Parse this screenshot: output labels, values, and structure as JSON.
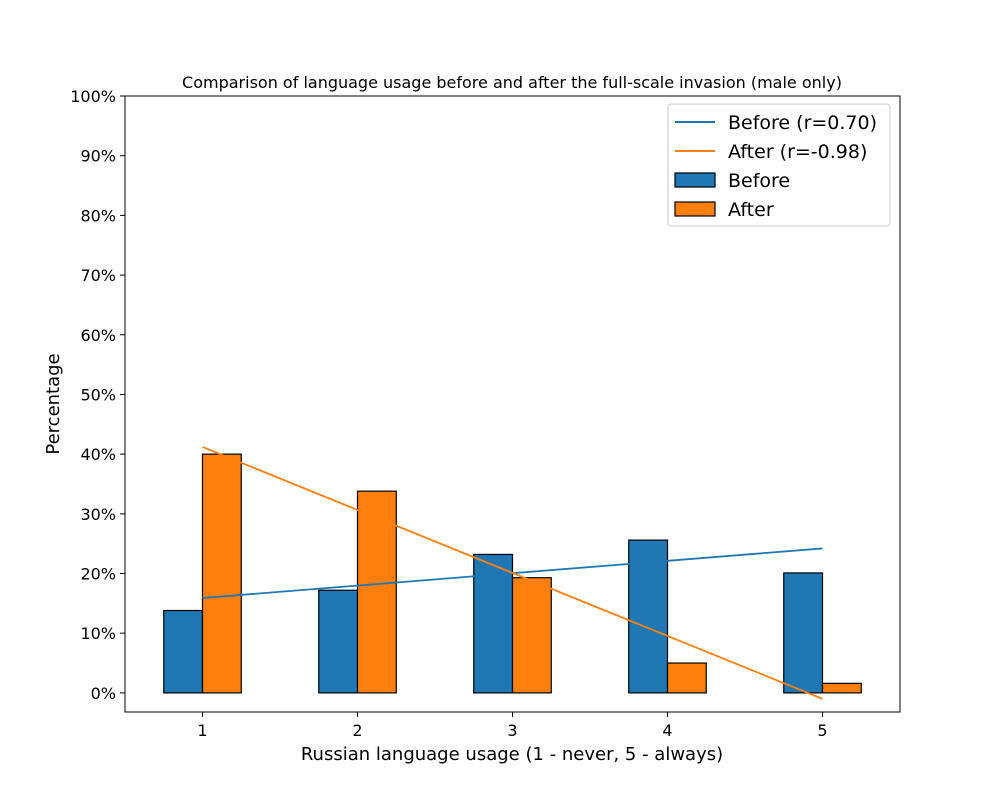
{
  "chart_data": {
    "type": "bar",
    "title": "Comparison of language usage before and after the full-scale invasion (male only)",
    "xlabel": "Russian language usage (1 - never, 5 - always)",
    "ylabel": "Percentage",
    "categories": [
      "1",
      "2",
      "3",
      "4",
      "5"
    ],
    "x": [
      1,
      2,
      3,
      4,
      5
    ],
    "ylim": [
      -3.2,
      100
    ],
    "yticks": [
      0,
      10,
      20,
      30,
      40,
      50,
      60,
      70,
      80,
      90,
      100
    ],
    "ytick_labels": [
      "0%",
      "10%",
      "20%",
      "30%",
      "40%",
      "50%",
      "60%",
      "70%",
      "80%",
      "90%",
      "100%"
    ],
    "grid": false,
    "legend_position": "top-right",
    "series": [
      {
        "name": "Before",
        "type": "bar",
        "color": "#1f77b4",
        "values": [
          13.8,
          17.2,
          23.2,
          25.6,
          20.1
        ]
      },
      {
        "name": "After",
        "type": "bar",
        "color": "#ff7f0e",
        "values": [
          40.0,
          33.8,
          19.3,
          5.0,
          1.6
        ]
      }
    ],
    "trendlines": [
      {
        "name": "Before (r=0.70)",
        "color": "#1f77b4",
        "x": [
          1,
          5
        ],
        "y": [
          15.9,
          24.2
        ]
      },
      {
        "name": "After (r=-0.98)",
        "color": "#ff7f0e",
        "x": [
          1,
          5
        ],
        "y": [
          41.2,
          -1.0
        ]
      }
    ],
    "legend": [
      "Before (r=0.70)",
      "After (r=-0.98)",
      "Before",
      "After"
    ]
  }
}
